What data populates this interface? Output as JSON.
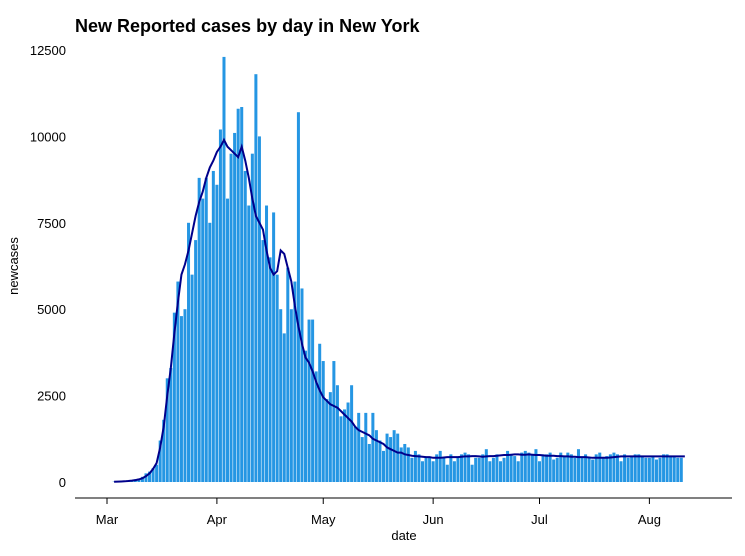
{
  "chart_data": {
    "type": "bar",
    "title": "New Reported cases by day in New York",
    "xlabel": "date",
    "ylabel": "newcases",
    "ylim": [
      0,
      12500
    ],
    "y_ticks": [
      0,
      2500,
      5000,
      7500,
      10000,
      12500
    ],
    "y_tick_labels": [
      "0",
      "2500",
      "5000",
      "7500",
      "10000",
      "12500"
    ],
    "x_ticks": [
      {
        "label": "Mar",
        "date": "2020-03-01"
      },
      {
        "label": "Apr",
        "date": "2020-04-01"
      },
      {
        "label": "May",
        "date": "2020-05-01"
      },
      {
        "label": "Jun",
        "date": "2020-06-01"
      },
      {
        "label": "Jul",
        "date": "2020-07-01"
      },
      {
        "label": "Aug",
        "date": "2020-08-01"
      }
    ],
    "grid": false,
    "legend": "none",
    "colors": {
      "bars": "#2596e3",
      "line": "#00008b"
    },
    "series": [
      {
        "type": "bar",
        "start_date": "2020-03-03",
        "values": [
          10,
          20,
          20,
          30,
          40,
          60,
          80,
          100,
          150,
          250,
          300,
          400,
          500,
          1200,
          1800,
          3000,
          3300,
          4900,
          5800,
          4800,
          5000,
          7500,
          6000,
          7000,
          8800,
          8200,
          8800,
          7500,
          9000,
          8600,
          10200,
          12300,
          8200,
          9500,
          10100,
          10800,
          10850,
          9000,
          8000,
          9500,
          11800,
          10000,
          7000,
          8000,
          6500,
          7800,
          6000,
          5000,
          4300,
          6200,
          5000,
          5800,
          10700,
          5600,
          3800,
          4700,
          4700,
          3200,
          4000,
          3500,
          2400,
          2600,
          3500,
          2800,
          1900,
          2100,
          2300,
          2800,
          1600,
          2000,
          1300,
          2000,
          1100,
          2000,
          1500,
          1200,
          900,
          1400,
          1300,
          1500,
          1400,
          1000,
          1100,
          1000,
          700,
          900,
          800,
          600,
          700,
          700,
          600,
          800,
          900,
          700,
          500,
          800,
          600,
          700,
          800,
          850,
          800,
          500,
          700,
          700,
          800,
          950,
          600,
          700,
          800,
          600,
          700,
          900,
          800,
          750,
          600,
          850,
          900,
          850,
          800,
          950,
          600,
          800,
          800,
          850,
          650,
          700,
          850,
          750,
          850,
          800,
          700,
          950,
          700,
          800,
          700,
          650,
          800,
          850,
          700,
          750,
          800,
          850,
          800,
          600,
          800,
          700,
          750,
          800,
          800,
          750,
          700,
          700,
          750,
          650,
          700,
          800,
          800,
          750,
          750,
          700,
          700
        ]
      },
      {
        "type": "line",
        "start_date": "2020-03-03",
        "values": [
          8,
          12,
          15,
          20,
          28,
          40,
          55,
          75,
          110,
          170,
          250,
          380,
          550,
          1000,
          1600,
          2500,
          3300,
          4300,
          5200,
          6000,
          6300,
          6700,
          7200,
          7700,
          8100,
          8400,
          8800,
          9100,
          9300,
          9550,
          9700,
          9900,
          9700,
          9600,
          9500,
          9400,
          9700,
          9300,
          8800,
          8200,
          7700,
          7500,
          7300,
          6700,
          6200,
          6000,
          6100,
          6700,
          6600,
          6200,
          5800,
          5100,
          4500,
          4000,
          3600,
          3450,
          3200,
          2900,
          2650,
          2450,
          2350,
          2250,
          2200,
          2150,
          2050,
          1950,
          1850,
          1750,
          1600,
          1500,
          1450,
          1400,
          1350,
          1250,
          1200,
          1150,
          1100,
          1000,
          950,
          900,
          850,
          850,
          800,
          780,
          760,
          750,
          740,
          730,
          720,
          720,
          700,
          700,
          700,
          710,
          720,
          720,
          720,
          720,
          730,
          740,
          740,
          750,
          750,
          740,
          730,
          740,
          750,
          750,
          760,
          770,
          780,
          780,
          790,
          800,
          800,
          790,
          790,
          800,
          790,
          780,
          780,
          770,
          760,
          760,
          760,
          750,
          750,
          740,
          740,
          730,
          730,
          720,
          720,
          720,
          710,
          700,
          700,
          700,
          700,
          700,
          710,
          720,
          730,
          740,
          740,
          740,
          740,
          740,
          740,
          740,
          740,
          740,
          740,
          740,
          740,
          740,
          740,
          740,
          740,
          740,
          740,
          740
        ]
      }
    ]
  }
}
